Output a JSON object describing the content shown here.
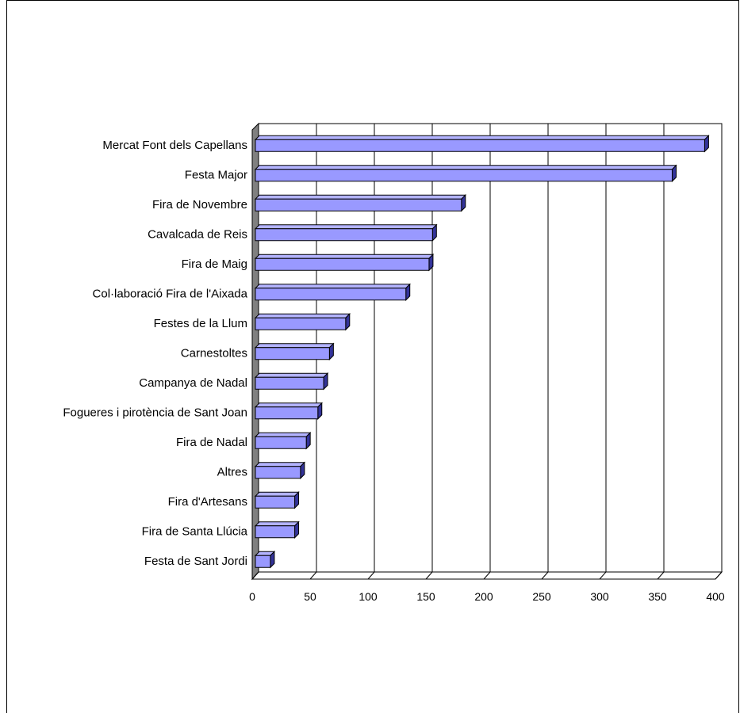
{
  "chart_data": {
    "type": "bar",
    "orientation": "horizontal",
    "style": "3d",
    "title": "",
    "xlabel": "",
    "ylabel": "",
    "categories": [
      "Mercat Font dels Capellans",
      "Festa Major",
      "Fira de Novembre",
      "Cavalcada de Reis",
      "Fira de Maig",
      "Col·laboració Fira de l'Aixada",
      "Festes de la Llum",
      "Carnestoltes",
      "Campanya de Nadal",
      "Fogueres i pirotència de Sant Joan",
      "Fira de Nadal",
      "Altres",
      "Fira d'Artesans",
      "Fira de Santa Llúcia",
      "Festa de Sant Jordi"
    ],
    "values": [
      390,
      362,
      180,
      155,
      152,
      132,
      80,
      66,
      61,
      56,
      46,
      41,
      36,
      36,
      15
    ],
    "xlim": [
      0,
      400
    ],
    "x_ticks": [
      "0",
      "50",
      "100",
      "150",
      "200",
      "250",
      "300",
      "350",
      "400"
    ],
    "grid": true,
    "legend": "none",
    "colors": {
      "bar_front": "#9999ff",
      "bar_top": "#b3b3ff",
      "bar_side": "#333399",
      "wall": "#808080",
      "grid": "#000000"
    }
  }
}
